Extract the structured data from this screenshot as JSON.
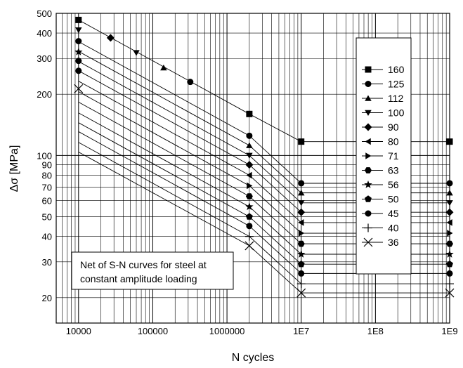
{
  "chart_data": {
    "type": "line",
    "xlabel": "N cycles",
    "ylabel": "Δσ [MPa]",
    "xscale": "log",
    "yscale": "log",
    "xlim": [
      5000,
      1000000000
    ],
    "ylim": [
      15,
      500
    ],
    "grid": true,
    "x_tick_labels": [
      {
        "value": 10000,
        "label": "10000"
      },
      {
        "value": 100000,
        "label": "100000"
      },
      {
        "value": 1000000,
        "label": "1000000"
      },
      {
        "value": 10000000,
        "label": "1E7"
      },
      {
        "value": 100000000,
        "label": "1E8"
      },
      {
        "value": 1000000000,
        "label": "1E9"
      }
    ],
    "y_tick_labels": [
      {
        "value": 20,
        "label": "20"
      },
      {
        "value": 30,
        "label": "30"
      },
      {
        "value": 40,
        "label": "40"
      },
      {
        "value": 50,
        "label": "50"
      },
      {
        "value": 60,
        "label": "60"
      },
      {
        "value": 70,
        "label": "70"
      },
      {
        "value": 80,
        "label": "80"
      },
      {
        "value": 90,
        "label": "90"
      },
      {
        "value": 100,
        "label": "100"
      },
      {
        "value": 200,
        "label": "200"
      },
      {
        "value": 300,
        "label": "300"
      },
      {
        "value": 400,
        "label": "400"
      },
      {
        "value": 500,
        "label": "500"
      }
    ],
    "legend_position": "top-right",
    "annotation": "Net of S-N curves for steel at constant amplitude loading",
    "series": [
      {
        "name": "160",
        "marker": "square",
        "x": [
          10000,
          2000000,
          10000000,
          1000000000
        ],
        "y": [
          464,
          160,
          117,
          117
        ]
      },
      {
        "name": "125",
        "marker": "circle",
        "x": [
          10000,
          2000000,
          10000000,
          1000000000
        ],
        "y": [
          363,
          125,
          73,
          73
        ]
      },
      {
        "name": "112",
        "marker": "triangle-up",
        "x": [
          10000,
          2000000,
          10000000,
          1000000000
        ],
        "y": [
          325,
          112,
          65.5,
          65.5
        ]
      },
      {
        "name": "100",
        "marker": "triangle-down",
        "x": [
          10000,
          2000000,
          10000000,
          1000000000
        ],
        "y": [
          290,
          100,
          58.5,
          58.5
        ]
      },
      {
        "name": "90",
        "marker": "diamond",
        "x": [
          10000,
          2000000,
          10000000,
          1000000000
        ],
        "y": [
          261,
          90,
          52.6,
          52.6
        ]
      },
      {
        "name": "80",
        "marker": "triangle-left",
        "x": [
          10000,
          2000000,
          10000000,
          1000000000
        ],
        "y": [
          232,
          80,
          46.8,
          46.8
        ]
      },
      {
        "name": "71",
        "marker": "triangle-right",
        "x": [
          10000,
          2000000,
          10000000,
          1000000000
        ],
        "y": [
          206,
          71,
          41.5,
          41.5
        ]
      },
      {
        "name": "63",
        "marker": "hexagon",
        "x": [
          10000,
          2000000,
          10000000,
          1000000000
        ],
        "y": [
          183,
          63,
          36.8,
          36.8
        ]
      },
      {
        "name": "56",
        "marker": "star",
        "x": [
          10000,
          2000000,
          10000000,
          1000000000
        ],
        "y": [
          162,
          56,
          32.7,
          32.7
        ]
      },
      {
        "name": "50",
        "marker": "pentagon",
        "x": [
          10000,
          2000000,
          10000000,
          1000000000
        ],
        "y": [
          145,
          50,
          29.2,
          29.2
        ]
      },
      {
        "name": "45",
        "marker": "circle",
        "x": [
          10000,
          2000000,
          10000000,
          1000000000
        ],
        "y": [
          131,
          45,
          26.3,
          26.3
        ]
      },
      {
        "name": "40",
        "marker": "plus",
        "x": [
          10000,
          2000000,
          10000000,
          1000000000
        ],
        "y": [
          116,
          40,
          23.4,
          23.4
        ]
      },
      {
        "name": "36",
        "marker": "x",
        "x": [
          10000,
          2000000,
          10000000,
          1000000000
        ],
        "y": [
          104,
          36,
          21.1,
          21.1
        ]
      }
    ],
    "extra_points": [
      {
        "x": 10000,
        "y": 464,
        "marker": "square"
      },
      {
        "x": 10000,
        "y": 414,
        "marker": "triangle-down"
      },
      {
        "x": 10000,
        "y": 365,
        "marker": "circle"
      },
      {
        "x": 10000,
        "y": 323,
        "marker": "star"
      },
      {
        "x": 10000,
        "y": 292,
        "marker": "circle"
      },
      {
        "x": 10000,
        "y": 261,
        "marker": "circle"
      },
      {
        "x": 10000,
        "y": 213,
        "marker": "x"
      },
      {
        "x": 27000,
        "y": 379,
        "marker": "diamond"
      },
      {
        "x": 60000,
        "y": 320,
        "marker": "triangle-down"
      },
      {
        "x": 140000,
        "y": 270,
        "marker": "triangle-up"
      },
      {
        "x": 320000,
        "y": 230,
        "marker": "circle"
      }
    ]
  }
}
